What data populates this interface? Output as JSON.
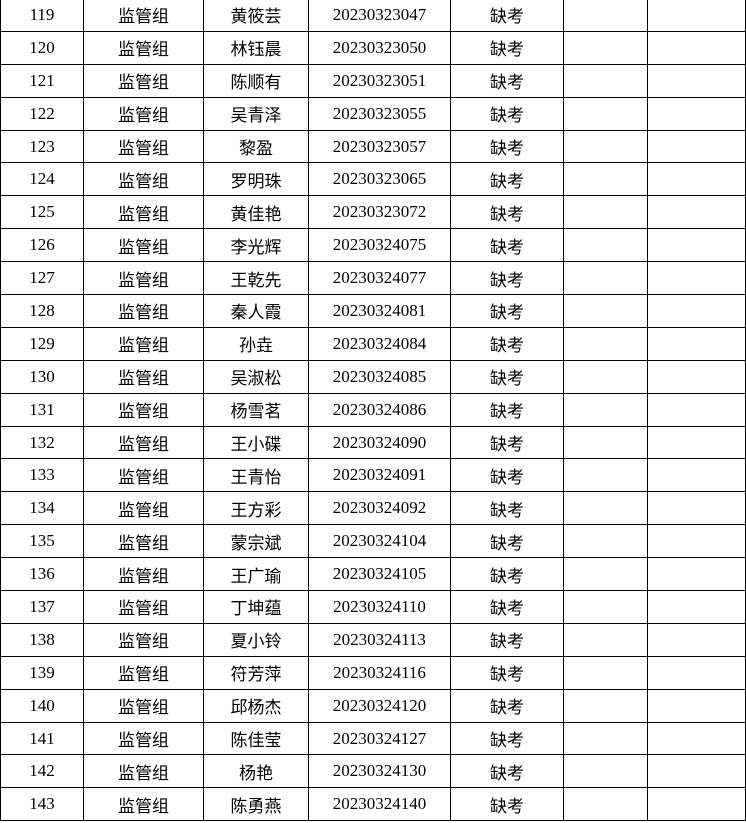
{
  "table": {
    "rows": [
      {
        "no": "119",
        "group": "监管组",
        "name": "黄筱芸",
        "exam_id": "20230323047",
        "status": "缺考",
        "c6": "",
        "c7": ""
      },
      {
        "no": "120",
        "group": "监管组",
        "name": "林钰晨",
        "exam_id": "20230323050",
        "status": "缺考",
        "c6": "",
        "c7": ""
      },
      {
        "no": "121",
        "group": "监管组",
        "name": "陈顺有",
        "exam_id": "20230323051",
        "status": "缺考",
        "c6": "",
        "c7": ""
      },
      {
        "no": "122",
        "group": "监管组",
        "name": "吴青泽",
        "exam_id": "20230323055",
        "status": "缺考",
        "c6": "",
        "c7": ""
      },
      {
        "no": "123",
        "group": "监管组",
        "name": "黎盈",
        "exam_id": "20230323057",
        "status": "缺考",
        "c6": "",
        "c7": ""
      },
      {
        "no": "124",
        "group": "监管组",
        "name": "罗明珠",
        "exam_id": "20230323065",
        "status": "缺考",
        "c6": "",
        "c7": ""
      },
      {
        "no": "125",
        "group": "监管组",
        "name": "黄佳艳",
        "exam_id": "20230323072",
        "status": "缺考",
        "c6": "",
        "c7": ""
      },
      {
        "no": "126",
        "group": "监管组",
        "name": "李光辉",
        "exam_id": "20230324075",
        "status": "缺考",
        "c6": "",
        "c7": ""
      },
      {
        "no": "127",
        "group": "监管组",
        "name": "王乾先",
        "exam_id": "20230324077",
        "status": "缺考",
        "c6": "",
        "c7": ""
      },
      {
        "no": "128",
        "group": "监管组",
        "name": "秦人霞",
        "exam_id": "20230324081",
        "status": "缺考",
        "c6": "",
        "c7": ""
      },
      {
        "no": "129",
        "group": "监管组",
        "name": "孙垚",
        "exam_id": "20230324084",
        "status": "缺考",
        "c6": "",
        "c7": ""
      },
      {
        "no": "130",
        "group": "监管组",
        "name": "吴淑松",
        "exam_id": "20230324085",
        "status": "缺考",
        "c6": "",
        "c7": ""
      },
      {
        "no": "131",
        "group": "监管组",
        "name": "杨雪茗",
        "exam_id": "20230324086",
        "status": "缺考",
        "c6": "",
        "c7": ""
      },
      {
        "no": "132",
        "group": "监管组",
        "name": "王小碟",
        "exam_id": "20230324090",
        "status": "缺考",
        "c6": "",
        "c7": ""
      },
      {
        "no": "133",
        "group": "监管组",
        "name": "王青怡",
        "exam_id": "20230324091",
        "status": "缺考",
        "c6": "",
        "c7": ""
      },
      {
        "no": "134",
        "group": "监管组",
        "name": "王方彩",
        "exam_id": "20230324092",
        "status": "缺考",
        "c6": "",
        "c7": ""
      },
      {
        "no": "135",
        "group": "监管组",
        "name": "蒙宗斌",
        "exam_id": "20230324104",
        "status": "缺考",
        "c6": "",
        "c7": ""
      },
      {
        "no": "136",
        "group": "监管组",
        "name": "王广瑜",
        "exam_id": "20230324105",
        "status": "缺考",
        "c6": "",
        "c7": ""
      },
      {
        "no": "137",
        "group": "监管组",
        "name": "丁坤蕴",
        "exam_id": "20230324110",
        "status": "缺考",
        "c6": "",
        "c7": ""
      },
      {
        "no": "138",
        "group": "监管组",
        "name": "夏小铃",
        "exam_id": "20230324113",
        "status": "缺考",
        "c6": "",
        "c7": ""
      },
      {
        "no": "139",
        "group": "监管组",
        "name": "符芳萍",
        "exam_id": "20230324116",
        "status": "缺考",
        "c6": "",
        "c7": ""
      },
      {
        "no": "140",
        "group": "监管组",
        "name": "邱杨杰",
        "exam_id": "20230324120",
        "status": "缺考",
        "c6": "",
        "c7": ""
      },
      {
        "no": "141",
        "group": "监管组",
        "name": "陈佳莹",
        "exam_id": "20230324127",
        "status": "缺考",
        "c6": "",
        "c7": ""
      },
      {
        "no": "142",
        "group": "监管组",
        "name": "杨艳",
        "exam_id": "20230324130",
        "status": "缺考",
        "c6": "",
        "c7": ""
      },
      {
        "no": "143",
        "group": "监管组",
        "name": "陈勇燕",
        "exam_id": "20230324140",
        "status": "缺考",
        "c6": "",
        "c7": ""
      }
    ]
  }
}
